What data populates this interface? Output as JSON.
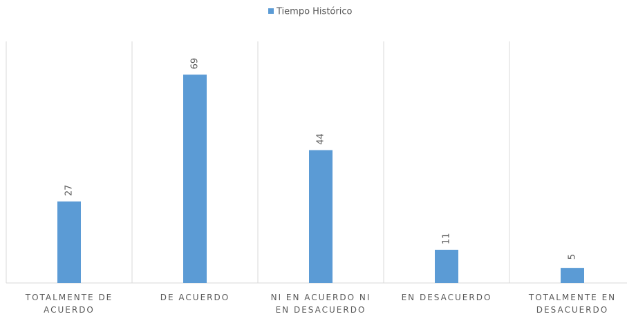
{
  "chart_data": {
    "type": "bar",
    "series": [
      {
        "name": "Tiempo Histórico",
        "color": "#5b9bd5",
        "values": [
          27,
          69,
          44,
          11,
          5
        ]
      }
    ],
    "categories": [
      "TOTALMENTE DE ACUERDO",
      "DE ACUERDO",
      "NI EN ACUERDO NI EN DESACUERDO",
      "EN DESACUERDO",
      "TOTALMENTE EN DESACUERDO"
    ],
    "ylim": [
      0,
      80
    ],
    "grid": true,
    "legend": "top"
  }
}
